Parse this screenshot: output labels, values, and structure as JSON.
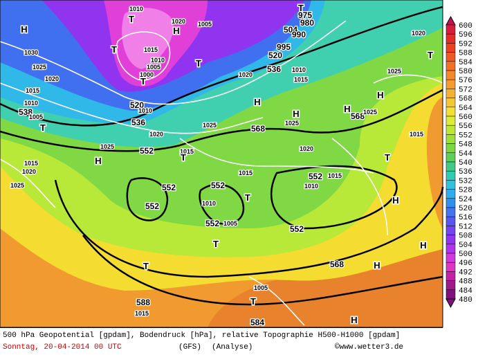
{
  "colorbar": {
    "levels": [
      600,
      596,
      592,
      588,
      584,
      580,
      576,
      572,
      568,
      564,
      560,
      556,
      552,
      548,
      544,
      540,
      536,
      532,
      528,
      524,
      520,
      516,
      512,
      508,
      504,
      500,
      496,
      492,
      488,
      484,
      480
    ],
    "colors": [
      "#c0105a",
      "#d81c3c",
      "#e42c28",
      "#ec4020",
      "#f05a22",
      "#f27028",
      "#f4882c",
      "#f49c30",
      "#f4b232",
      "#f4c834",
      "#f4e034",
      "#dcec34",
      "#bce834",
      "#9ce038",
      "#7cd840",
      "#5cd058",
      "#40cc88",
      "#30ccb4",
      "#30c4dc",
      "#30acf0",
      "#3090f0",
      "#4474f0",
      "#5858f0",
      "#7444f0",
      "#9034f0",
      "#b034ec",
      "#d038e0",
      "#e034c4",
      "#c420a8",
      "#a0188c",
      "#801080"
    ]
  },
  "map": {
    "labels": [
      "1010",
      "T",
      "1020",
      "H",
      "1005",
      "T",
      "1015",
      "1010",
      "1005",
      "1000",
      "T",
      "T",
      "H",
      "1030",
      "1025",
      "1020",
      "1015",
      "1010",
      "538",
      "1005",
      "T",
      "520",
      "1010",
      "536",
      "1020",
      "552",
      "1025",
      "H",
      "1015",
      "1020",
      "1025",
      "1015",
      "T",
      "504",
      "995",
      "520",
      "536",
      "1020",
      "1010",
      "1015",
      "1025",
      "T",
      "1020",
      "H",
      "H",
      "H",
      "H",
      "568",
      "1025",
      "568",
      "1025",
      "1025",
      "1020",
      "1015",
      "T",
      "552",
      "552",
      "552",
      "1010",
      "552",
      "1005",
      "T",
      "1015",
      "552",
      "1010",
      "1015",
      "552",
      "H",
      "T",
      "T",
      "568",
      "H",
      "H",
      "588",
      "1015",
      "1005",
      "T",
      "584",
      "H",
      "T",
      "975",
      "980",
      "990"
    ]
  },
  "footer": {
    "description": "500 hPa Geopotential [gpdam], Bodendruck [hPa], relative Topographie H500-H1000 [gpdam]",
    "date": "Sonntag, 20-04-2014  00 UTC",
    "model": "(GFS)",
    "run": "(Analyse)",
    "credit": "©www.wetter3.de"
  }
}
